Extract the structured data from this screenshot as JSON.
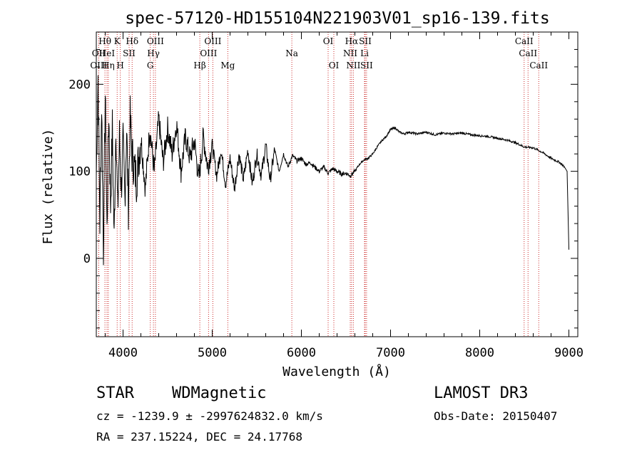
{
  "chart_data": {
    "type": "line",
    "title": "spec-57120-HD155104N221903V01_sp16-139.fits",
    "xlabel": "Wavelength (Å)",
    "ylabel": "Flux (relative)",
    "xlim": [
      3700,
      9100
    ],
    "ylim": [
      -90,
      260
    ],
    "xticks": [
      4000,
      5000,
      6000,
      7000,
      8000,
      9000
    ],
    "xtick_labels": [
      "4000",
      "5000",
      "6000",
      "7000",
      "8000",
      "9000"
    ],
    "yticks": [
      0,
      100,
      200
    ],
    "ytick_labels": [
      "0",
      "100",
      "200"
    ],
    "grid": false,
    "series": [
      {
        "name": "flux",
        "x": [
          3700,
          3720,
          3740,
          3760,
          3780,
          3800,
          3820,
          3840,
          3860,
          3880,
          3900,
          3920,
          3940,
          3960,
          3980,
          4000,
          4020,
          4040,
          4060,
          4080,
          4100,
          4150,
          4200,
          4250,
          4300,
          4350,
          4400,
          4450,
          4500,
          4550,
          4600,
          4650,
          4700,
          4750,
          4800,
          4850,
          4900,
          4950,
          5000,
          5050,
          5100,
          5150,
          5200,
          5250,
          5300,
          5350,
          5400,
          5450,
          5500,
          5550,
          5600,
          5650,
          5700,
          5750,
          5800,
          5850,
          5900,
          5950,
          6000,
          6050,
          6100,
          6150,
          6200,
          6250,
          6300,
          6350,
          6400,
          6450,
          6500,
          6550,
          6600,
          6650,
          6700,
          6750,
          6800,
          6850,
          6900,
          6950,
          7000,
          7050,
          7100,
          7150,
          7200,
          7300,
          7400,
          7500,
          7600,
          7700,
          7800,
          7900,
          8000,
          8100,
          8200,
          8300,
          8400,
          8500,
          8600,
          8700,
          8800,
          8900,
          8950,
          8980,
          9000
        ],
        "y": [
          95,
          210,
          40,
          180,
          10,
          190,
          30,
          170,
          60,
          150,
          20,
          160,
          50,
          140,
          80,
          130,
          70,
          150,
          60,
          160,
          120,
          90,
          140,
          80,
          150,
          100,
          160,
          110,
          150,
          120,
          155,
          100,
          140,
          115,
          135,
          90,
          140,
          105,
          130,
          95,
          125,
          85,
          115,
          80,
          120,
          90,
          125,
          85,
          120,
          95,
          130,
          90,
          125,
          100,
          120,
          105,
          118,
          112,
          115,
          108,
          110,
          105,
          100,
          105,
          98,
          103,
          100,
          97,
          98,
          95,
          100,
          108,
          113,
          115,
          120,
          128,
          135,
          140,
          148,
          150,
          145,
          143,
          145,
          143,
          145,
          142,
          144,
          143,
          144,
          142,
          141,
          140,
          138,
          136,
          133,
          128,
          127,
          122,
          115,
          110,
          105,
          100,
          10
        ]
      }
    ],
    "line_annotations": [
      {
        "label": "Hθ",
        "x": 3797,
        "row": 1
      },
      {
        "label": "OII",
        "x": 3727,
        "row": 2
      },
      {
        "label": "OIII",
        "x": 3727,
        "row": 3
      },
      {
        "label": "HeI",
        "x": 3820,
        "row": 2
      },
      {
        "label": "Hη",
        "x": 3835,
        "row": 3
      },
      {
        "label": "K",
        "x": 3934,
        "row": 1
      },
      {
        "label": "SII",
        "x": 4068,
        "row": 2
      },
      {
        "label": "H",
        "x": 3969,
        "row": 3
      },
      {
        "label": "Hδ",
        "x": 4102,
        "row": 1
      },
      {
        "label": "OIII",
        "x": 4363,
        "row": 1
      },
      {
        "label": "Hγ",
        "x": 4341,
        "row": 2
      },
      {
        "label": "G",
        "x": 4305,
        "row": 3
      },
      {
        "label": "Hβ",
        "x": 4861,
        "row": 3
      },
      {
        "label": "OIII",
        "x": 5007,
        "row": 1
      },
      {
        "label": "OIII",
        "x": 4959,
        "row": 2
      },
      {
        "label": "Mg",
        "x": 5175,
        "row": 3
      },
      {
        "label": "Na",
        "x": 5893,
        "row": 2
      },
      {
        "label": "OI",
        "x": 6300,
        "row": 1
      },
      {
        "label": "OI",
        "x": 6364,
        "row": 3
      },
      {
        "label": "Hα",
        "x": 6563,
        "row": 1
      },
      {
        "label": "SII",
        "x": 6716,
        "row": 1
      },
      {
        "label": "NII",
        "x": 6548,
        "row": 2
      },
      {
        "label": "Li",
        "x": 6708,
        "row": 2
      },
      {
        "label": "NII",
        "x": 6583,
        "row": 3
      },
      {
        "label": "SII",
        "x": 6731,
        "row": 3
      },
      {
        "label": "CaII",
        "x": 8498,
        "row": 1
      },
      {
        "label": "CaII",
        "x": 8542,
        "row": 2
      },
      {
        "label": "CaII",
        "x": 8662,
        "row": 3
      }
    ]
  },
  "info": {
    "class_label": "STAR",
    "subclass": "WDMagnetic",
    "survey": "LAMOST DR3",
    "cz_line": "cz = -1239.9 ± -2997624832.0 km/s",
    "obs_date": "Obs-Date: 20150407",
    "coords": "RA = 237.15224, DEC =  24.17768"
  },
  "colors": {
    "line": "#000000",
    "marker": "#cc2a2a",
    "background": "#ffffff"
  }
}
